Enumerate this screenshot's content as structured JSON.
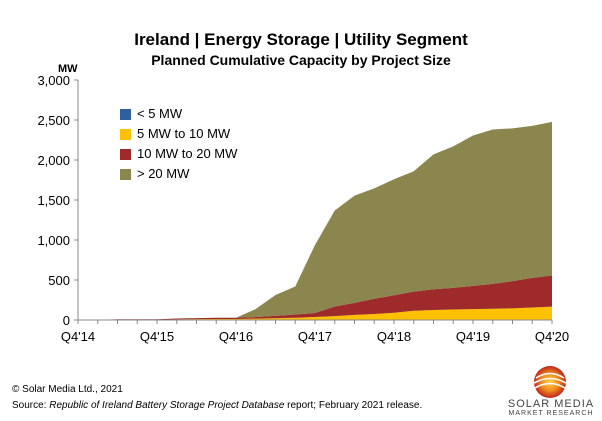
{
  "header": {
    "title": "Ireland | Energy Storage | Utility Segment",
    "subtitle": "Planned Cumulative Capacity by Project Size"
  },
  "footer": {
    "copyright": "© Solar Media Ltd., 2021",
    "source_prefix": "Source: ",
    "source_italic": "Republic of Ireland Battery Storage Project Database",
    "source_suffix": " report; February 2021 release."
  },
  "logo": {
    "line1": "SOLAR MEDIA",
    "line2": "MARKET RESEARCH"
  },
  "chart_data": {
    "type": "area",
    "stacked": true,
    "unit_label": "MW",
    "ylim": [
      0,
      3000
    ],
    "yticks": [
      "0",
      "500",
      "1,000",
      "1,500",
      "2,000",
      "2,500",
      "3,000"
    ],
    "ytick_values": [
      0,
      500,
      1000,
      1500,
      2000,
      2500,
      3000
    ],
    "x": [
      "Q4'14",
      "Q1'15",
      "Q2'15",
      "Q3'15",
      "Q4'15",
      "Q1'16",
      "Q2'16",
      "Q3'16",
      "Q4'16",
      "Q1'17",
      "Q2'17",
      "Q3'17",
      "Q4'17",
      "Q1'18",
      "Q2'18",
      "Q3'18",
      "Q4'18",
      "Q1'19",
      "Q2'19",
      "Q3'19",
      "Q4'19",
      "Q1'20",
      "Q2'20",
      "Q3'20",
      "Q4'20"
    ],
    "xtick_labels": [
      "Q4'14",
      "Q4'15",
      "Q4'16",
      "Q4'17",
      "Q4'18",
      "Q4'19",
      "Q4'20"
    ],
    "xtick_indices": [
      0,
      4,
      8,
      12,
      16,
      20,
      24
    ],
    "legend_position": "upper-left",
    "grid": false,
    "series": [
      {
        "name": "< 5 MW",
        "color": "#2e5f9e",
        "values": [
          0,
          0,
          0,
          0,
          0,
          0,
          1,
          1,
          1,
          2,
          2,
          3,
          3,
          4,
          4,
          5,
          5,
          5,
          5,
          6,
          6,
          6,
          6,
          7,
          7
        ]
      },
      {
        "name": "5 MW to 10 MW",
        "color": "#ffc000",
        "values": [
          0,
          0,
          5,
          5,
          5,
          8,
          10,
          12,
          12,
          15,
          20,
          25,
          35,
          45,
          60,
          70,
          85,
          110,
          120,
          125,
          130,
          135,
          140,
          150,
          160
        ]
      },
      {
        "name": "10 MW to 20 MW",
        "color": "#9e2a2b",
        "values": [
          0,
          2,
          5,
          5,
          5,
          10,
          12,
          15,
          15,
          20,
          30,
          40,
          50,
          120,
          150,
          190,
          220,
          240,
          260,
          270,
          290,
          310,
          340,
          370,
          390
        ]
      },
      {
        "name": "> 20 MW",
        "color": "#8b864e",
        "values": [
          0,
          0,
          0,
          0,
          0,
          0,
          0,
          0,
          0,
          100,
          260,
          350,
          850,
          1200,
          1340,
          1380,
          1450,
          1505,
          1685,
          1770,
          1880,
          1930,
          1910,
          1900,
          1920
        ]
      }
    ]
  }
}
